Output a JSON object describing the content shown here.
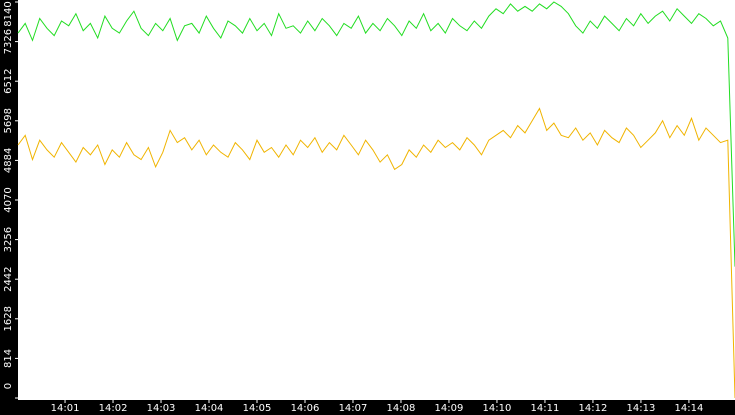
{
  "chart_data": {
    "type": "line",
    "xlim": [
      0.02,
      14.96
    ],
    "xticks": [
      {
        "value": 1,
        "label": "14:01"
      },
      {
        "value": 2,
        "label": "14:02"
      },
      {
        "value": 3,
        "label": "14:03"
      },
      {
        "value": 4,
        "label": "14:04"
      },
      {
        "value": 5,
        "label": "14:05"
      },
      {
        "value": 6,
        "label": "14:06"
      },
      {
        "value": 7,
        "label": "14:07"
      },
      {
        "value": 8,
        "label": "14:08"
      },
      {
        "value": 9,
        "label": "14:09"
      },
      {
        "value": 10,
        "label": "14:10"
      },
      {
        "value": 11,
        "label": "14:11"
      },
      {
        "value": 12,
        "label": "14:12"
      },
      {
        "value": 13,
        "label": "14:13"
      },
      {
        "value": 14,
        "label": "14:14"
      }
    ],
    "ylim": [
      0,
      8140
    ],
    "yticks": [
      0,
      814,
      1628,
      2442,
      3256,
      4070,
      4884,
      5698,
      6512,
      7326,
      8140
    ],
    "series": [
      {
        "color": "#22dd22",
        "values": [
          7500,
          7700,
          7350,
          7800,
          7600,
          7450,
          7750,
          7650,
          7900,
          7550,
          7700,
          7400,
          7850,
          7600,
          7500,
          7750,
          7950,
          7600,
          7450,
          7700,
          7550,
          7800,
          7350,
          7650,
          7700,
          7500,
          7850,
          7600,
          7400,
          7750,
          7650,
          7500,
          7800,
          7550,
          7700,
          7450,
          7900,
          7600,
          7650,
          7500,
          7750,
          7550,
          7800,
          7650,
          7450,
          7700,
          7600,
          7850,
          7500,
          7700,
          7550,
          7800,
          7650,
          7450,
          7750,
          7600,
          7900,
          7550,
          7700,
          7500,
          7800,
          7650,
          7550,
          7750,
          7600,
          7850,
          8000,
          7900,
          8100,
          7950,
          8050,
          7950,
          8100,
          8000,
          8140,
          8050,
          7900,
          7650,
          7500,
          7750,
          7600,
          7850,
          7700,
          7550,
          7800,
          7650,
          7900,
          7700,
          7850,
          7950,
          7750,
          8000,
          7850,
          7700,
          7900,
          7800,
          7650,
          7750,
          7400,
          2700
        ]
      },
      {
        "color": "#f0b400",
        "values": [
          5200,
          5400,
          4900,
          5300,
          5100,
          4950,
          5250,
          5050,
          4850,
          5150,
          5000,
          5200,
          4800,
          5100,
          4950,
          5250,
          5000,
          4900,
          5150,
          4750,
          5050,
          5500,
          5250,
          5350,
          5100,
          5300,
          5000,
          5200,
          5050,
          4950,
          5250,
          5100,
          4900,
          5300,
          5050,
          5150,
          4950,
          5200,
          5000,
          5300,
          5150,
          5350,
          5050,
          5250,
          5100,
          5400,
          5200,
          5000,
          5300,
          5100,
          4850,
          5000,
          4700,
          4800,
          5100,
          4950,
          5200,
          5050,
          5300,
          5150,
          5250,
          5100,
          5350,
          5200,
          5000,
          5300,
          5400,
          5500,
          5350,
          5600,
          5450,
          5700,
          5950,
          5500,
          5650,
          5400,
          5350,
          5550,
          5300,
          5450,
          5200,
          5500,
          5350,
          5250,
          5550,
          5400,
          5150,
          5300,
          5450,
          5700,
          5350,
          5600,
          5400,
          5750,
          5300,
          5550,
          5400,
          5250,
          5300,
          0
        ]
      }
    ]
  }
}
